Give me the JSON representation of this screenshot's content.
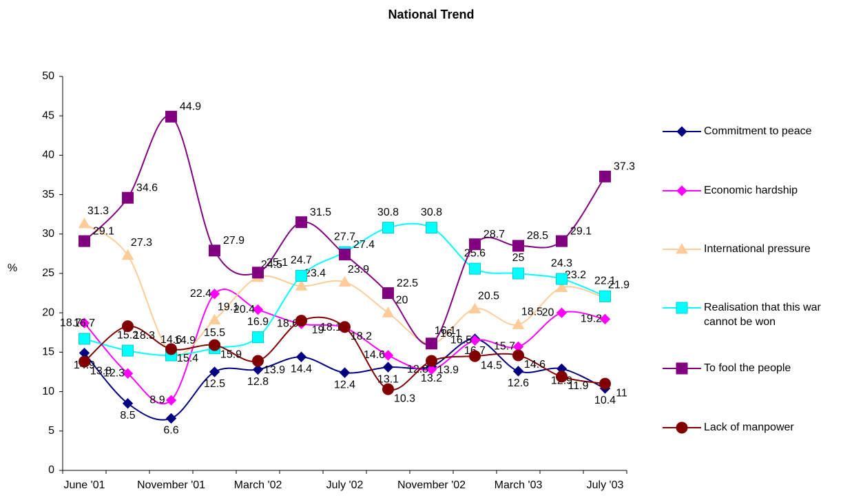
{
  "chart_data": {
    "type": "line",
    "title": "National Trend",
    "y_label": "%",
    "categories": [
      "June '01",
      null,
      "November '01",
      null,
      "March '02",
      null,
      "July '02",
      null,
      "November '02",
      null,
      "March '03",
      null,
      "July '03"
    ],
    "ylim": [
      0,
      50
    ],
    "yticks": [
      0,
      5,
      10,
      15,
      20,
      25,
      30,
      35,
      40,
      45,
      50
    ],
    "smooth": true,
    "legend": "right",
    "series": [
      {
        "name": "Commitment to peace",
        "color": "#000080",
        "marker": "diamond",
        "values": [
          14.9,
          8.5,
          6.6,
          12.5,
          12.8,
          14.4,
          12.4,
          13.1,
          13.2,
          16.7,
          12.6,
          12.9,
          10.4
        ]
      },
      {
        "name": "Economic hardship",
        "color": "#ff00ff",
        "marker": "diamond",
        "values": [
          18.7,
          12.3,
          8.9,
          22.4,
          20.4,
          18.6,
          18.1,
          14.6,
          12.8,
          16.5,
          15.7,
          20,
          19.2
        ]
      },
      {
        "name": "International pressure",
        "color": "#ffcc99",
        "marker": "triangle",
        "values": [
          31.3,
          27.3,
          14.9,
          19.1,
          24.5,
          23.4,
          23.9,
          20,
          16.1,
          20.5,
          18.5,
          23.2,
          21.9
        ]
      },
      {
        "name": "Realisation that this war cannot be won",
        "color": "#00ffff",
        "marker": "square",
        "values": [
          16.7,
          15.2,
          14.6,
          15.5,
          16.9,
          24.7,
          27.7,
          30.8,
          30.8,
          25.6,
          25,
          24.3,
          22.1
        ]
      },
      {
        "name": "To fool the people",
        "color": "#800080",
        "marker": "square",
        "values": [
          29.1,
          34.6,
          44.9,
          27.9,
          25.1,
          31.5,
          27.4,
          22.5,
          16.1,
          28.7,
          28.5,
          29.1,
          37.3
        ]
      },
      {
        "name": "Lack of manpower",
        "color": "#800000",
        "marker": "circle",
        "values": [
          13.8,
          18.3,
          15.4,
          15.9,
          13.9,
          19,
          18.2,
          10.3,
          13.9,
          14.5,
          14.6,
          11.9,
          11
        ]
      }
    ]
  }
}
